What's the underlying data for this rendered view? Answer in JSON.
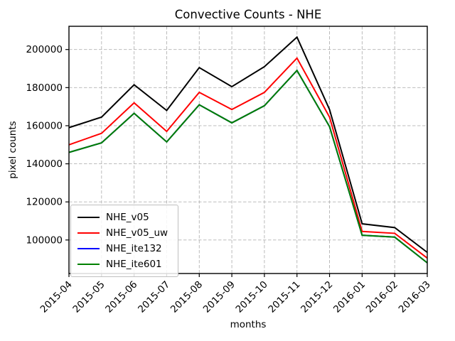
{
  "chart_data": {
    "type": "line",
    "title": "Convective Counts - NHE",
    "xlabel": "months",
    "ylabel": "pixel counts",
    "categories": [
      "2015-04",
      "2015-05",
      "2015-06",
      "2015-07",
      "2015-08",
      "2015-09",
      "2015-10",
      "2015-11",
      "2015-12",
      "2016-01",
      "2016-02",
      "2016-03"
    ],
    "series": [
      {
        "name": "NHE_v05",
        "color": "#000000",
        "values": [
          159000,
          164500,
          181500,
          168000,
          190500,
          180500,
          191000,
          206500,
          168500,
          108500,
          106500,
          93500
        ]
      },
      {
        "name": "NHE_v05_uw",
        "color": "#ff0000",
        "values": [
          150000,
          156000,
          172000,
          157000,
          177500,
          168500,
          177500,
          195500,
          164500,
          104500,
          103500,
          90500
        ]
      },
      {
        "name": "NHE_ite132",
        "color": "#0000ff",
        "values": [
          146000,
          151000,
          166500,
          151500,
          171000,
          161500,
          170500,
          189000,
          159500,
          102500,
          101500,
          88000
        ]
      },
      {
        "name": "NHE_ite601",
        "color": "#008000",
        "values": [
          146000,
          151000,
          166500,
          151500,
          171000,
          161500,
          170500,
          189000,
          159500,
          102500,
          101500,
          88000
        ]
      }
    ],
    "yticks": [
      100000,
      120000,
      140000,
      160000,
      180000,
      200000
    ],
    "ylim": [
      82400,
      212200
    ],
    "grid": true,
    "grid_style": "dashed",
    "grid_color": "#b4b4b4",
    "legend_position": "lower left",
    "x_tick_rotation": 45
  }
}
